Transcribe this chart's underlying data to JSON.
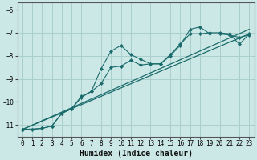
{
  "xlabel": "Humidex (Indice chaleur)",
  "xlim": [
    -0.5,
    23.5
  ],
  "ylim": [
    -11.5,
    -5.7
  ],
  "xticks": [
    0,
    1,
    2,
    3,
    4,
    5,
    6,
    7,
    8,
    9,
    10,
    11,
    12,
    13,
    14,
    15,
    16,
    17,
    18,
    19,
    20,
    21,
    22,
    23
  ],
  "yticks": [
    -11,
    -10,
    -9,
    -8,
    -7,
    -6
  ],
  "background_color": "#cce8e6",
  "grid_color": "#aacfcd",
  "line_color": "#1a6b6b",
  "line1_x": [
    0,
    1,
    2,
    3,
    4,
    5,
    6,
    7,
    8,
    9,
    10,
    11,
    12,
    13,
    14,
    15,
    16,
    17,
    18,
    19,
    20,
    21,
    22,
    23
  ],
  "line1_y": [
    -11.2,
    -11.2,
    -11.15,
    -11.05,
    -10.5,
    -10.3,
    -9.8,
    -9.55,
    -8.55,
    -7.8,
    -7.55,
    -7.95,
    -8.15,
    -8.35,
    -8.35,
    -8.0,
    -7.55,
    -6.85,
    -6.75,
    -7.05,
    -7.05,
    -7.1,
    -7.2,
    -7.1
  ],
  "line2_x": [
    0,
    2,
    3,
    4,
    5,
    6,
    7,
    8,
    9,
    10,
    11,
    12,
    13,
    14,
    15,
    16,
    17,
    18,
    19,
    20,
    21,
    22,
    23
  ],
  "line2_y": [
    -11.2,
    -11.15,
    -11.05,
    -10.5,
    -10.3,
    -9.75,
    -9.55,
    -9.2,
    -8.5,
    -8.45,
    -8.2,
    -8.4,
    -8.35,
    -8.35,
    -7.95,
    -7.5,
    -7.05,
    -7.05,
    -7.0,
    -7.0,
    -7.05,
    -7.5,
    -7.05
  ],
  "line3_x": [
    0,
    23
  ],
  "line3_y": [
    -11.2,
    -7.05
  ],
  "line4_x": [
    0,
    23
  ],
  "line4_y": [
    -11.2,
    -7.05
  ]
}
